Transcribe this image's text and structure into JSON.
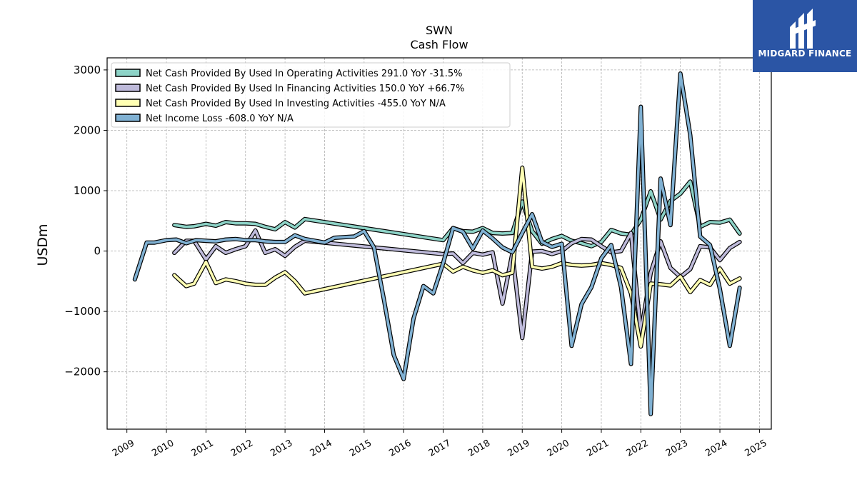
{
  "chart_data": {
    "type": "line",
    "title": "SWN",
    "subtitle": "Cash Flow",
    "ylabel": "USDm",
    "ylim": [
      -2950,
      3200
    ],
    "xlim": [
      2008.5,
      2025.3
    ],
    "yticks": [
      -2000,
      -1000,
      0,
      1000,
      2000,
      3000
    ],
    "ytick_labels": [
      "−2000",
      "−1000",
      "0",
      "1000",
      "2000",
      "3000"
    ],
    "xticks": [
      "2009",
      "2010",
      "2011",
      "2012",
      "2013",
      "2014",
      "2015",
      "2016",
      "2017",
      "2018",
      "2019",
      "2020",
      "2021",
      "2022",
      "2023",
      "2024",
      "2025"
    ],
    "grid": true,
    "legend_position": "top-left",
    "series": [
      {
        "name": "Net Cash Provided By Used In Operating Activities  291.0 YoY -31.5%",
        "color": "#8dd3c7",
        "x": [
          2010.2,
          2010.5,
          2010.7,
          2011.0,
          2011.25,
          2011.5,
          2011.75,
          2012.0,
          2012.25,
          2012.5,
          2012.75,
          2013.0,
          2013.25,
          2013.5,
          2017.0,
          2017.25,
          2017.5,
          2017.75,
          2018.0,
          2018.25,
          2018.5,
          2018.75,
          2019.0,
          2019.25,
          2019.5,
          2019.75,
          2020.0,
          2020.25,
          2020.5,
          2020.75,
          2021.0,
          2021.25,
          2021.5,
          2021.75,
          2022.0,
          2022.25,
          2022.5,
          2022.75,
          2023.0,
          2023.25,
          2023.5,
          2023.75,
          2024.0,
          2024.25,
          2024.5
        ],
        "y": [
          430,
          400,
          410,
          450,
          420,
          480,
          460,
          460,
          450,
          400,
          360,
          480,
          390,
          530,
          180,
          380,
          330,
          320,
          380,
          300,
          290,
          300,
          820,
          330,
          120,
          200,
          250,
          170,
          130,
          80,
          150,
          350,
          290,
          270,
          520,
          990,
          520,
          830,
          950,
          1150,
          400,
          480,
          470,
          520,
          291
        ]
      },
      {
        "name": "Net Cash Provided By Used In Financing Activities  150.0 YoY +66.7%",
        "color": "#bebada",
        "x": [
          2010.2,
          2010.5,
          2010.7,
          2011.0,
          2011.25,
          2011.5,
          2011.75,
          2012.0,
          2012.25,
          2012.5,
          2012.75,
          2013.0,
          2013.25,
          2013.5,
          2017.0,
          2017.25,
          2017.5,
          2017.75,
          2018.0,
          2018.25,
          2018.5,
          2018.75,
          2019.0,
          2019.25,
          2019.5,
          2019.75,
          2020.0,
          2020.25,
          2020.5,
          2020.75,
          2021.0,
          2021.25,
          2021.5,
          2021.75,
          2022.0,
          2022.25,
          2022.5,
          2022.75,
          2023.0,
          2023.25,
          2023.5,
          2023.75,
          2024.0,
          2024.25,
          2024.5
        ],
        "y": [
          -30,
          170,
          170,
          -140,
          80,
          -30,
          30,
          80,
          340,
          -30,
          30,
          -80,
          70,
          170,
          -50,
          -40,
          -200,
          -30,
          -60,
          -20,
          -870,
          -40,
          -1440,
          -10,
          0,
          -50,
          0,
          130,
          200,
          190,
          80,
          -20,
          0,
          300,
          -1350,
          -360,
          160,
          -280,
          -430,
          -300,
          80,
          60,
          -150,
          50,
          150
        ]
      },
      {
        "name": "Net Cash Provided By Used In Investing Activities  -455.0 YoY N/A",
        "color": "#ffffb3",
        "x": [
          2010.2,
          2010.5,
          2010.7,
          2011.0,
          2011.25,
          2011.5,
          2011.75,
          2012.0,
          2012.25,
          2012.5,
          2012.75,
          2013.0,
          2013.25,
          2013.5,
          2017.0,
          2017.25,
          2017.5,
          2017.75,
          2018.0,
          2018.25,
          2018.5,
          2018.75,
          2019.0,
          2019.25,
          2019.5,
          2019.75,
          2020.0,
          2020.25,
          2020.5,
          2020.75,
          2021.0,
          2021.25,
          2021.5,
          2021.75,
          2022.0,
          2022.25,
          2022.5,
          2022.75,
          2023.0,
          2023.25,
          2023.5,
          2023.75,
          2024.0,
          2024.25,
          2024.5
        ],
        "y": [
          -400,
          -580,
          -540,
          -180,
          -530,
          -470,
          -500,
          -540,
          -560,
          -560,
          -440,
          -350,
          -500,
          -700,
          -210,
          -340,
          -260,
          -320,
          -360,
          -320,
          -400,
          -360,
          1380,
          -260,
          -290,
          -260,
          -200,
          -230,
          -240,
          -230,
          -200,
          -230,
          -280,
          -700,
          -1580,
          -540,
          -550,
          -570,
          -420,
          -680,
          -480,
          -560,
          -290,
          -540,
          -455
        ]
      },
      {
        "name": "Net Income Loss  -608.0 YoY N/A",
        "color": "#80b1d3",
        "x": [
          2009.2,
          2009.5,
          2009.7,
          2010.0,
          2010.25,
          2010.5,
          2010.75,
          2011.0,
          2011.25,
          2011.5,
          2011.75,
          2012.0,
          2012.25,
          2012.5,
          2012.75,
          2013.0,
          2013.25,
          2013.5,
          2014.0,
          2014.25,
          2014.5,
          2014.75,
          2015.0,
          2015.25,
          2015.5,
          2015.75,
          2016.0,
          2016.25,
          2016.5,
          2016.75,
          2017.0,
          2017.25,
          2017.5,
          2017.75,
          2018.0,
          2018.25,
          2018.5,
          2018.75,
          2019.0,
          2019.25,
          2019.5,
          2019.75,
          2020.0,
          2020.25,
          2020.5,
          2020.75,
          2021.0,
          2021.25,
          2021.5,
          2021.75,
          2022.0,
          2022.25,
          2022.5,
          2022.75,
          2023.0,
          2023.25,
          2023.5,
          2023.75,
          2024.0,
          2024.25,
          2024.5
        ],
        "y": [
          -470,
          140,
          140,
          180,
          190,
          130,
          180,
          170,
          160,
          190,
          200,
          180,
          180,
          160,
          150,
          150,
          260,
          200,
          140,
          220,
          230,
          240,
          330,
          60,
          -800,
          -1720,
          -2120,
          -1120,
          -580,
          -700,
          -200,
          380,
          320,
          40,
          340,
          210,
          60,
          -20,
          300,
          610,
          150,
          70,
          120,
          -1570,
          -880,
          -600,
          -120,
          100,
          -600,
          -1870,
          2390,
          -2700,
          1200,
          430,
          2940,
          1920,
          240,
          100,
          -630,
          -1570,
          -608
        ]
      }
    ]
  },
  "logo": {
    "text": "MIDGARD FINANCE",
    "bg": "#2b55a5"
  }
}
